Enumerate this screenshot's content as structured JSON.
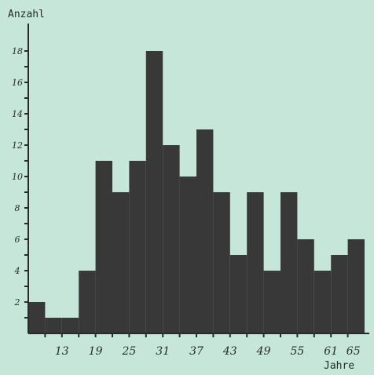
{
  "chart_data": {
    "type": "bar",
    "title": "",
    "xlabel": "Jahre",
    "ylabel": "Anzahl",
    "ylim": [
      0,
      19
    ],
    "xlim": [
      7,
      67
    ],
    "bin_width": 3,
    "bins": [
      {
        "start": 7,
        "end": 10,
        "value": 2
      },
      {
        "start": 10,
        "end": 13,
        "value": 1
      },
      {
        "start": 13,
        "end": 16,
        "value": 1
      },
      {
        "start": 16,
        "end": 19,
        "value": 4
      },
      {
        "start": 19,
        "end": 22,
        "value": 11
      },
      {
        "start": 22,
        "end": 25,
        "value": 9
      },
      {
        "start": 25,
        "end": 28,
        "value": 11
      },
      {
        "start": 28,
        "end": 31,
        "value": 18
      },
      {
        "start": 31,
        "end": 34,
        "value": 12
      },
      {
        "start": 34,
        "end": 37,
        "value": 10
      },
      {
        "start": 37,
        "end": 40,
        "value": 13
      },
      {
        "start": 40,
        "end": 43,
        "value": 9
      },
      {
        "start": 43,
        "end": 46,
        "value": 5
      },
      {
        "start": 46,
        "end": 49,
        "value": 9
      },
      {
        "start": 49,
        "end": 52,
        "value": 4
      },
      {
        "start": 52,
        "end": 55,
        "value": 9
      },
      {
        "start": 55,
        "end": 58,
        "value": 6
      },
      {
        "start": 58,
        "end": 61,
        "value": 4
      },
      {
        "start": 61,
        "end": 64,
        "value": 5
      },
      {
        "start": 64,
        "end": 67,
        "value": 6
      }
    ],
    "y_ticks": [
      2,
      4,
      6,
      8,
      10,
      12,
      14,
      16,
      18
    ],
    "y_tick_labels": [
      "2",
      "4",
      "6",
      "8",
      "10",
      "12",
      "14",
      "16",
      "18"
    ],
    "x_ticks": [
      13,
      19,
      25,
      31,
      37,
      43,
      49,
      55,
      61,
      65
    ],
    "x_tick_labels": [
      "13",
      "19",
      "25",
      "31",
      "37",
      "43",
      "49",
      "55",
      "61",
      "65"
    ],
    "grid": false,
    "colors": {
      "bar": "#383838",
      "background": "#c5e6d9",
      "axis": "#2a2a2a"
    }
  }
}
